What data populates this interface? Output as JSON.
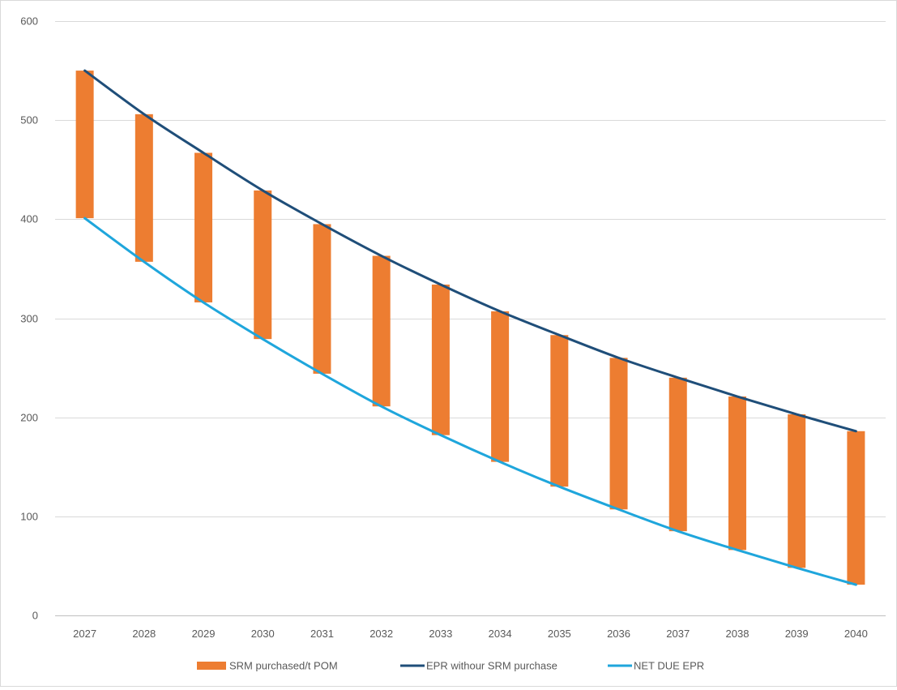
{
  "chart_data": {
    "type": "bar",
    "categories": [
      "2027",
      "2028",
      "2029",
      "2030",
      "2031",
      "2032",
      "2033",
      "2034",
      "2035",
      "2036",
      "2037",
      "2038",
      "2039",
      "2040"
    ],
    "series": [
      {
        "name": "SRM purchased/t POM",
        "kind": "floating-bar",
        "color": "#ed7d31",
        "low": [
          401,
          357,
          316,
          279,
          244,
          211,
          182,
          155,
          130,
          107,
          85,
          66,
          48,
          31
        ],
        "high": [
          550,
          506,
          467,
          429,
          395,
          363,
          334,
          307,
          283,
          260,
          240,
          221,
          203,
          186
        ]
      },
      {
        "name": "EPR withour SRM purchase",
        "kind": "line",
        "color": "#1f4e79",
        "values": [
          550,
          506,
          467,
          429,
          395,
          363,
          334,
          307,
          283,
          260,
          240,
          221,
          203,
          186
        ]
      },
      {
        "name": "NET DUE EPR",
        "kind": "line",
        "color": "#1fa6dc",
        "values": [
          401,
          357,
          316,
          279,
          244,
          211,
          182,
          155,
          130,
          107,
          85,
          66,
          48,
          31
        ]
      }
    ],
    "ylim": [
      0,
      600
    ],
    "yticks": [
      0,
      100,
      200,
      300,
      400,
      500,
      600
    ],
    "grid": true,
    "legend_position": "bottom",
    "title": "",
    "xlabel": "",
    "ylabel": ""
  }
}
